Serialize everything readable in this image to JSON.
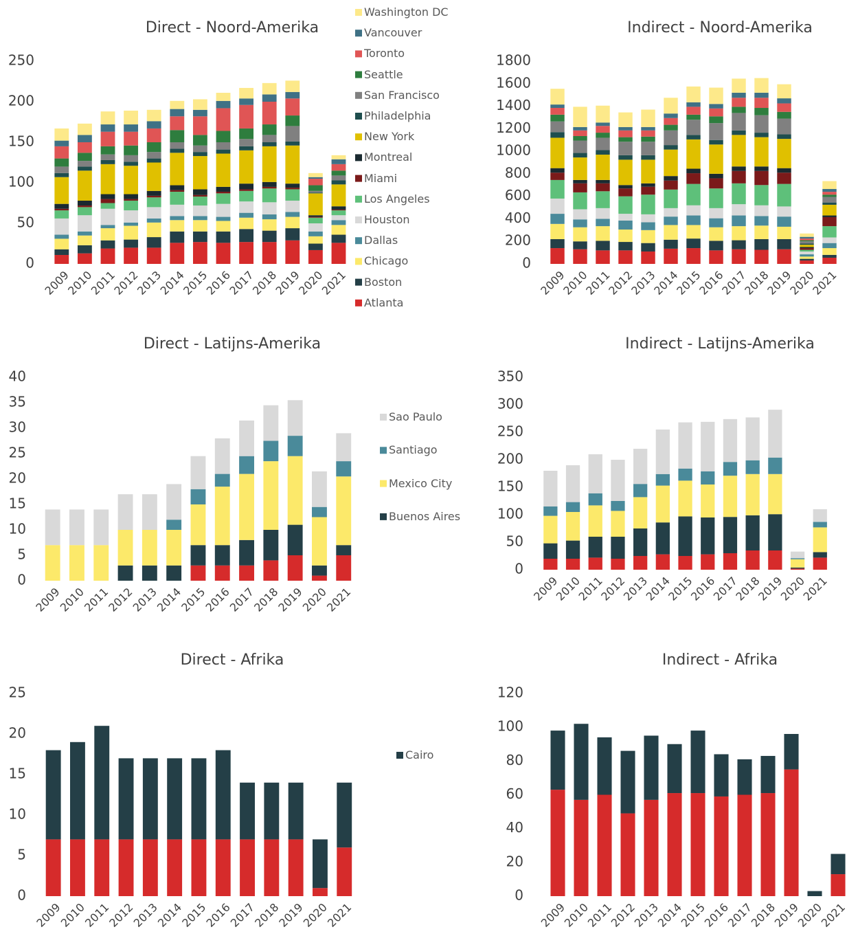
{
  "chart_data": [
    {
      "type": "stacked_bar",
      "title": "Direct - Noord-Amerika",
      "categories": [
        "2009",
        "2010",
        "2011",
        "2012",
        "2013",
        "2014",
        "2015",
        "2016",
        "2017",
        "2018",
        "2019",
        "2020",
        "2021"
      ],
      "ylim": [
        0,
        250
      ],
      "yticks": [
        0,
        50,
        100,
        150,
        200,
        250
      ],
      "grid": false,
      "series": [
        {
          "name": "Atlanta",
          "color": "#d62b2b",
          "values": [
            11,
            13,
            19,
            20,
            20,
            26,
            27,
            26,
            27,
            27,
            29,
            17,
            26
          ]
        },
        {
          "name": "Boston",
          "color": "#243f47",
          "values": [
            7,
            10,
            10,
            10,
            13,
            14,
            13,
            14,
            16,
            14,
            15,
            8,
            10
          ]
        },
        {
          "name": "Chicago",
          "color": "#fce96a",
          "values": [
            13,
            12,
            15,
            17,
            18,
            14,
            14,
            13,
            14,
            14,
            14,
            9,
            12
          ]
        },
        {
          "name": "Dallas",
          "color": "#4a8a9a",
          "values": [
            5,
            5,
            4,
            4,
            5,
            5,
            5,
            5,
            6,
            6,
            6,
            6,
            6
          ]
        },
        {
          "name": "Houston",
          "color": "#d9d9d9",
          "values": [
            20,
            20,
            20,
            15,
            14,
            14,
            13,
            16,
            14,
            15,
            14,
            10,
            6
          ]
        },
        {
          "name": "Los Angeles",
          "color": "#5ec07a",
          "values": [
            10,
            10,
            7,
            12,
            12,
            16,
            11,
            13,
            13,
            17,
            14,
            7,
            6
          ]
        },
        {
          "name": "Miami",
          "color": "#7b1a1a",
          "values": [
            2,
            2,
            5,
            2,
            2,
            2,
            2,
            2,
            2,
            2,
            2,
            1,
            1
          ]
        },
        {
          "name": "Montreal",
          "color": "#1a2a30",
          "values": [
            6,
            6,
            6,
            6,
            6,
            6,
            7,
            6,
            7,
            6,
            5,
            2,
            4
          ]
        },
        {
          "name": "New York",
          "color": "#e0c000",
          "values": [
            33,
            37,
            37,
            35,
            35,
            40,
            41,
            41,
            41,
            44,
            47,
            27,
            27
          ]
        },
        {
          "name": "Philadelphia",
          "color": "#1f4e4e",
          "values": [
            5,
            5,
            5,
            5,
            5,
            5,
            5,
            5,
            5,
            5,
            5,
            1,
            5
          ]
        },
        {
          "name": "San Francisco",
          "color": "#808080",
          "values": [
            8,
            7,
            7,
            8,
            8,
            8,
            8,
            9,
            9,
            9,
            19,
            2,
            6
          ]
        },
        {
          "name": "Seattle",
          "color": "#2e7d3e",
          "values": [
            10,
            10,
            10,
            12,
            12,
            15,
            13,
            14,
            13,
            13,
            13,
            7,
            6
          ]
        },
        {
          "name": "Toronto",
          "color": "#e05555",
          "values": [
            15,
            13,
            18,
            17,
            17,
            17,
            23,
            28,
            29,
            28,
            21,
            8,
            8
          ]
        },
        {
          "name": "Vancouver",
          "color": "#3f7185",
          "values": [
            7,
            9,
            9,
            9,
            9,
            9,
            8,
            9,
            8,
            9,
            8,
            2,
            6
          ]
        },
        {
          "name": "Washington DC",
          "color": "#fde98a",
          "values": [
            15,
            14,
            16,
            17,
            14,
            10,
            13,
            10,
            13,
            14,
            14,
            5,
            5
          ]
        }
      ]
    },
    {
      "type": "stacked_bar",
      "title": "Indirect - Noord-Amerika",
      "categories": [
        "2009",
        "2010",
        "2011",
        "2012",
        "2013",
        "2014",
        "2015",
        "2016",
        "2017",
        "2018",
        "2019",
        "2020",
        "2021"
      ],
      "ylim": [
        0,
        1800
      ],
      "yticks": [
        0,
        200,
        400,
        600,
        800,
        1000,
        1200,
        1400,
        1600,
        1800
      ],
      "grid": false,
      "series": [
        {
          "name": "Atlanta",
          "color": "#d62b2b",
          "values": [
            140,
            130,
            120,
            120,
            110,
            135,
            140,
            120,
            130,
            125,
            130,
            30,
            55
          ]
        },
        {
          "name": "Boston",
          "color": "#243f47",
          "values": [
            80,
            70,
            85,
            75,
            75,
            80,
            85,
            85,
            80,
            95,
            90,
            15,
            25
          ]
        },
        {
          "name": "Chicago",
          "color": "#fce96a",
          "values": [
            135,
            125,
            130,
            110,
            115,
            130,
            120,
            120,
            125,
            120,
            110,
            20,
            60
          ]
        },
        {
          "name": "Dallas",
          "color": "#4a8a9a",
          "values": [
            90,
            70,
            65,
            80,
            70,
            75,
            85,
            80,
            95,
            85,
            90,
            20,
            45
          ]
        },
        {
          "name": "Houston",
          "color": "#d9d9d9",
          "values": [
            135,
            90,
            95,
            60,
            70,
            75,
            90,
            90,
            100,
            95,
            90,
            25,
            50
          ]
        },
        {
          "name": "Los Angeles",
          "color": "#5ec07a",
          "values": [
            165,
            150,
            150,
            155,
            175,
            165,
            190,
            175,
            185,
            180,
            200,
            15,
            100
          ]
        },
        {
          "name": "Miami",
          "color": "#7b1a1a",
          "values": [
            65,
            80,
            70,
            70,
            70,
            80,
            95,
            90,
            110,
            125,
            100,
            15,
            80
          ]
        },
        {
          "name": "Montreal",
          "color": "#1a2a30",
          "values": [
            40,
            30,
            30,
            30,
            30,
            40,
            40,
            40,
            40,
            40,
            40,
            10,
            15
          ]
        },
        {
          "name": "New York",
          "color": "#e0c000",
          "values": [
            270,
            200,
            225,
            225,
            210,
            235,
            260,
            260,
            280,
            260,
            260,
            20,
            95
          ]
        },
        {
          "name": "Philadelphia",
          "color": "#1f4e4e",
          "values": [
            50,
            40,
            40,
            40,
            40,
            40,
            40,
            40,
            40,
            40,
            40,
            10,
            20
          ]
        },
        {
          "name": "San Francisco",
          "color": "#808080",
          "values": [
            95,
            110,
            110,
            120,
            120,
            130,
            135,
            150,
            155,
            155,
            140,
            20,
            50
          ]
        },
        {
          "name": "Seattle",
          "color": "#2e7d3e",
          "values": [
            60,
            40,
            45,
            40,
            45,
            50,
            45,
            60,
            55,
            65,
            60,
            10,
            20
          ]
        },
        {
          "name": "Toronto",
          "color": "#e05555",
          "values": [
            60,
            50,
            60,
            60,
            55,
            60,
            70,
            70,
            80,
            90,
            75,
            15,
            25
          ]
        },
        {
          "name": "Vancouver",
          "color": "#3f7185",
          "values": [
            30,
            30,
            30,
            30,
            30,
            40,
            40,
            40,
            45,
            45,
            45,
            15,
            25
          ]
        },
        {
          "name": "Washington DC",
          "color": "#fde98a",
          "values": [
            140,
            180,
            150,
            130,
            155,
            140,
            140,
            145,
            125,
            130,
            125,
            30,
            70
          ]
        }
      ]
    },
    {
      "type": "stacked_bar",
      "title": "Direct - Latijns-Amerika",
      "categories": [
        "2009",
        "2010",
        "2011",
        "2012",
        "2013",
        "2014",
        "2015",
        "2016",
        "2017",
        "2018",
        "2019",
        "2020",
        "2021"
      ],
      "ylim": [
        0,
        40
      ],
      "yticks": [
        0,
        5,
        10,
        15,
        20,
        25,
        30,
        35,
        40
      ],
      "grid": false,
      "series": [
        {
          "name": null,
          "color": "#d62b2b",
          "values": [
            0,
            0,
            0,
            0,
            0,
            0,
            3,
            3,
            3,
            4,
            5,
            1,
            5
          ]
        },
        {
          "name": "Buenos Aires",
          "color": "#243f47",
          "values": [
            0,
            0,
            0,
            3,
            3,
            3,
            4,
            4,
            5,
            6,
            6,
            2,
            2
          ]
        },
        {
          "name": "Mexico City",
          "color": "#fce96a",
          "values": [
            7,
            7,
            7,
            7,
            7,
            7,
            8,
            11.5,
            13,
            13.5,
            13.5,
            9.5,
            13.5
          ]
        },
        {
          "name": "Santiago",
          "color": "#4a8a9a",
          "values": [
            0,
            0,
            0,
            0,
            0,
            2,
            3,
            2.5,
            3.5,
            4,
            4,
            2,
            3
          ]
        },
        {
          "name": "Sao Paulo",
          "color": "#d9d9d9",
          "values": [
            7,
            7,
            7,
            7,
            7,
            7,
            6.5,
            7,
            7,
            7,
            7,
            7,
            5.5
          ]
        }
      ]
    },
    {
      "type": "stacked_bar",
      "title": "Indirect - Latijns-Amerika",
      "categories": [
        "2009",
        "2010",
        "2011",
        "2012",
        "2013",
        "2014",
        "2015",
        "2016",
        "2017",
        "2018",
        "2019",
        "2020",
        "2021"
      ],
      "ylim": [
        0,
        350
      ],
      "yticks": [
        0,
        50,
        100,
        150,
        200,
        250,
        300,
        350
      ],
      "grid": false,
      "series": [
        {
          "name": null,
          "color": "#d62b2b",
          "values": [
            20,
            20,
            22,
            20,
            25,
            28,
            25,
            28,
            30,
            35,
            35,
            2,
            22
          ]
        },
        {
          "name": "Buenos Aires",
          "color": "#243f47",
          "values": [
            28,
            33,
            38,
            40,
            50,
            58,
            72,
            67,
            66,
            64,
            66,
            2,
            10
          ]
        },
        {
          "name": "Mexico City",
          "color": "#fce96a",
          "values": [
            50,
            52,
            57,
            47,
            57,
            67,
            65,
            60,
            75,
            75,
            73,
            15,
            45
          ]
        },
        {
          "name": "Santiago",
          "color": "#4a8a9a",
          "values": [
            17,
            18,
            22,
            18,
            24,
            21,
            22,
            24,
            25,
            25,
            30,
            2,
            10
          ]
        },
        {
          "name": "Sao Paulo",
          "color": "#d9d9d9",
          "values": [
            65,
            67,
            71,
            75,
            64,
            81,
            84,
            90,
            78,
            78,
            87,
            12,
            23
          ]
        }
      ]
    },
    {
      "type": "stacked_bar",
      "title": "Direct - Afrika",
      "categories": [
        "2009",
        "2010",
        "2011",
        "2012",
        "2013",
        "2014",
        "2015",
        "2016",
        "2017",
        "2018",
        "2019",
        "2020",
        "2021"
      ],
      "ylim": [
        0,
        25
      ],
      "yticks": [
        0,
        5,
        10,
        15,
        20,
        25
      ],
      "grid": false,
      "series": [
        {
          "name": null,
          "color": "#d62b2b",
          "values": [
            7,
            7,
            7,
            7,
            7,
            7,
            7,
            7,
            7,
            7,
            7,
            1,
            6
          ]
        },
        {
          "name": "Cairo",
          "color": "#243f47",
          "values": [
            11,
            12,
            14,
            10,
            10,
            10,
            10,
            11,
            7,
            7,
            7,
            6,
            8
          ]
        }
      ]
    },
    {
      "type": "stacked_bar",
      "title": "Indirect - Afrika",
      "categories": [
        "2009",
        "2010",
        "2011",
        "2012",
        "2013",
        "2014",
        "2015",
        "2016",
        "2017",
        "2018",
        "2019",
        "2020",
        "2021"
      ],
      "ylim": [
        0,
        120
      ],
      "yticks": [
        0,
        20,
        40,
        60,
        80,
        100,
        120
      ],
      "grid": false,
      "series": [
        {
          "name": null,
          "color": "#d62b2b",
          "values": [
            63,
            57,
            60,
            49,
            57,
            61,
            61,
            59,
            60,
            61,
            75,
            0,
            13
          ]
        },
        {
          "name": "Cairo",
          "color": "#243f47",
          "values": [
            35,
            45,
            34,
            37,
            38,
            29,
            37,
            25,
            21,
            22,
            21,
            3,
            12
          ]
        }
      ]
    }
  ]
}
